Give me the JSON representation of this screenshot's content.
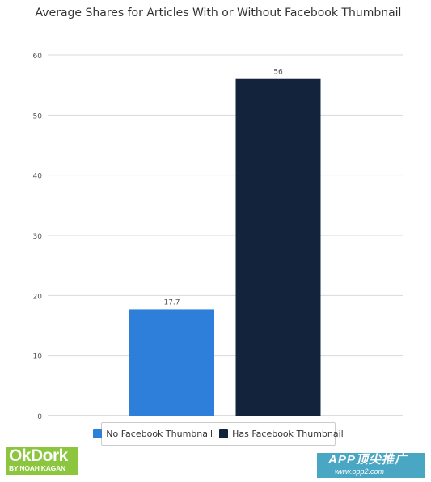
{
  "chart_data": {
    "type": "bar",
    "title": "Average Shares for Articles With or Without Facebook Thumbnail",
    "categories": [
      "No Facebook Thumbnail",
      "Has Facebook Thumbnail"
    ],
    "values": [
      17.7,
      56
    ],
    "value_labels": [
      "17.7",
      "56"
    ],
    "colors": [
      "#2e7fd9",
      "#13233b"
    ],
    "ylim": [
      0,
      60
    ],
    "yticks": [
      0,
      10,
      20,
      30,
      40,
      50,
      60
    ],
    "xlabel": "",
    "ylabel": "",
    "grid": true,
    "legend": {
      "position": "bottom-center",
      "entries": [
        {
          "label": "No Facebook Thumbnail",
          "color": "#2e7fd9"
        },
        {
          "label": "Has Facebook Thumbnail",
          "color": "#13233b"
        }
      ]
    }
  },
  "watermarks": {
    "okdork": {
      "title": "OkDork",
      "subtitle": "BY NOAH KAGAN"
    },
    "app": {
      "title": "APP顶尖推广",
      "subtitle": "www.opp2.com"
    }
  }
}
